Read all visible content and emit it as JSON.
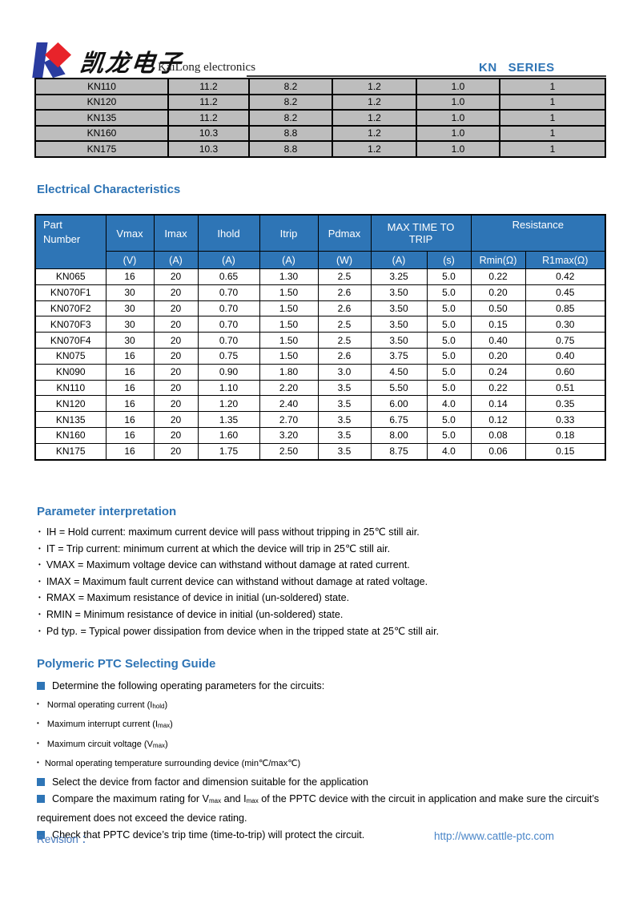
{
  "header": {
    "brand_cn": "凯龙电子",
    "brand_en": "KaiLong electronics",
    "series": "KN   SERIES"
  },
  "top_table": {
    "rows": [
      [
        "KN110",
        "11.2",
        "8.2",
        "1.2",
        "1.0",
        "1"
      ],
      [
        "KN120",
        "11.2",
        "8.2",
        "1.2",
        "1.0",
        "1"
      ],
      [
        "KN135",
        "11.2",
        "8.2",
        "1.2",
        "1.0",
        "1"
      ],
      [
        "KN160",
        "10.3",
        "8.8",
        "1.2",
        "1.0",
        "1"
      ],
      [
        "KN175",
        "10.3",
        "8.8",
        "1.2",
        "1.0",
        "1"
      ]
    ]
  },
  "electrical": {
    "title": "Electrical Characteristics",
    "header": {
      "part_number_line1": "Part",
      "part_number_line2": "Number",
      "vmax": "Vmax",
      "imax": "Imax",
      "ihold": "Ihold",
      "itrip": "Itrip",
      "pdmax": "Pdmax",
      "max_time_line1": "MAX TIME TO",
      "max_time_line2": "TRIP",
      "resistance": "Resistance",
      "units": [
        "(V)",
        "(A)",
        "(A)",
        "(A)",
        "(W)",
        "(A)",
        "(s)",
        "Rmin(Ω)",
        "R1max(Ω)"
      ]
    },
    "rows": [
      [
        "KN065",
        "16",
        "20",
        "0.65",
        "1.30",
        "2.5",
        "3.25",
        "5.0",
        "0.22",
        "0.42"
      ],
      [
        "KN070F1",
        "30",
        "20",
        "0.70",
        "1.50",
        "2.6",
        "3.50",
        "5.0",
        "0.20",
        "0.45"
      ],
      [
        "KN070F2",
        "30",
        "20",
        "0.70",
        "1.50",
        "2.6",
        "3.50",
        "5.0",
        "0.50",
        "0.85"
      ],
      [
        "KN070F3",
        "30",
        "20",
        "0.70",
        "1.50",
        "2.5",
        "3.50",
        "5.0",
        "0.15",
        "0.30"
      ],
      [
        "KN070F4",
        "30",
        "20",
        "0.70",
        "1.50",
        "2.5",
        "3.50",
        "5.0",
        "0.40",
        "0.75"
      ],
      [
        "KN075",
        "16",
        "20",
        "0.75",
        "1.50",
        "2.6",
        "3.75",
        "5.0",
        "0.20",
        "0.40"
      ],
      [
        "KN090",
        "16",
        "20",
        "0.90",
        "1.80",
        "3.0",
        "4.50",
        "5.0",
        "0.24",
        "0.60"
      ],
      [
        "KN110",
        "16",
        "20",
        "1.10",
        "2.20",
        "3.5",
        "5.50",
        "5.0",
        "0.22",
        "0.51"
      ],
      [
        "KN120",
        "16",
        "20",
        "1.20",
        "2.40",
        "3.5",
        "6.00",
        "4.0",
        "0.14",
        "0.35"
      ],
      [
        "KN135",
        "16",
        "20",
        "1.35",
        "2.70",
        "3.5",
        "6.75",
        "5.0",
        "0.12",
        "0.33"
      ],
      [
        "KN160",
        "16",
        "20",
        "1.60",
        "3.20",
        "3.5",
        "8.00",
        "5.0",
        "0.08",
        "0.18"
      ],
      [
        "KN175",
        "16",
        "20",
        "1.75",
        "2.50",
        "3.5",
        "8.75",
        "4.0",
        "0.06",
        "0.15"
      ]
    ]
  },
  "parameter_interpretation": {
    "title": "Parameter interpretation",
    "bullets": [
      "IH = Hold current: maximum current device will pass without tripping in 25℃  still air.",
      "IT = Trip current: minimum current at which the device will trip in 25℃  still air.",
      "VMAX = Maximum voltage device can withstand without damage at rated current.",
      "IMAX = Maximum fault current device can withstand without damage at rated voltage.",
      "RMAX = Maximum resistance of device in initial (un-soldered) state.",
      "RMIN = Minimum resistance of device in initial (un-soldered) state.",
      "Pd typ. = Typical power dissipation from device when in the tripped state at 25℃  still air."
    ]
  },
  "selecting_guide": {
    "title": "Polymeric PTC Selecting Guide",
    "determine": "Determine the following operating parameters for the circuits:",
    "sub_hold_pre": "Normal operating current (I",
    "sub_hold_sub": "hold",
    "sub_hold_post": ")",
    "sub_imax_pre": "Maximum interrupt current (I",
    "sub_imax_sub": "max",
    "sub_imax_post": ")",
    "sub_vmax_pre": "Maximum circuit voltage (V",
    "sub_vmax_sub": "max",
    "sub_vmax_post": ")",
    "sub_temp": "Normal operating temperature surrounding device (min℃/max℃)",
    "select_item": "Select the device from factor and dimension suitable for the application",
    "compare_pre": "Compare the maximum rating for V",
    "compare_sub1": "max",
    "compare_mid": " and I",
    "compare_sub2": "max",
    "compare_post": " of the PPTC device with the circuit in application and make sure the circuit’s requirement does not exceed the device rating.",
    "check_item": "Check that PPTC device’s trip time (time-to-trip) will protect the circuit."
  },
  "footer": {
    "revision_label": "Revision ：",
    "url": "http://www.cattle-ptc.com"
  },
  "colors": {
    "accent_blue": "#2e75b6",
    "heading_blue": "#2e74b5",
    "footer_blue": "#4679bd",
    "table_gray": "#bdbdbd",
    "logo_blue": "#2a3ca0",
    "logo_red": "#e8232a"
  }
}
